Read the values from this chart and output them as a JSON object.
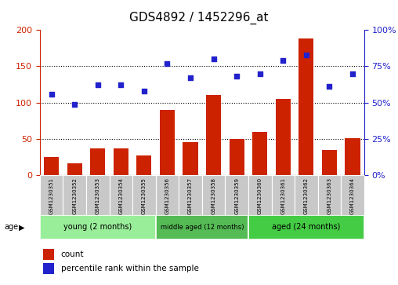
{
  "title": "GDS4892 / 1452296_at",
  "samples": [
    "GSM1230351",
    "GSM1230352",
    "GSM1230353",
    "GSM1230354",
    "GSM1230355",
    "GSM1230356",
    "GSM1230357",
    "GSM1230358",
    "GSM1230359",
    "GSM1230360",
    "GSM1230361",
    "GSM1230362",
    "GSM1230363",
    "GSM1230364"
  ],
  "counts": [
    25,
    17,
    37,
    37,
    27,
    90,
    46,
    110,
    50,
    60,
    105,
    188,
    35,
    51
  ],
  "percentiles": [
    56,
    49,
    62,
    62,
    58,
    77,
    67,
    80,
    68,
    70,
    79,
    83,
    61,
    70
  ],
  "bar_color": "#cc2200",
  "dot_color": "#2222cc",
  "left_ylim": [
    0,
    200
  ],
  "right_ylim": [
    0,
    100
  ],
  "left_yticks": [
    0,
    50,
    100,
    150,
    200
  ],
  "right_yticks": [
    0,
    25,
    50,
    75,
    100
  ],
  "right_yticklabels": [
    "0%",
    "25%",
    "50%",
    "75%",
    "100%"
  ],
  "groups": [
    {
      "label": "young (2 months)",
      "indices": [
        0,
        1,
        2,
        3,
        4
      ],
      "color": "#99ee99"
    },
    {
      "label": "middle aged (12 months)",
      "indices": [
        5,
        6,
        7,
        8
      ],
      "color": "#55bb55"
    },
    {
      "label": "aged (24 months)",
      "indices": [
        9,
        10,
        11,
        12,
        13
      ],
      "color": "#44cc44"
    }
  ],
  "age_label": "age",
  "legend_count_label": "count",
  "legend_pct_label": "percentile rank within the sample",
  "title_fontsize": 11,
  "axis_color_left": "#cc2200",
  "axis_color_right": "#2222cc",
  "grid_dotted_values": [
    50,
    100,
    150
  ],
  "background_color": "#ffffff",
  "tick_bg_color": "#c8c8c8"
}
